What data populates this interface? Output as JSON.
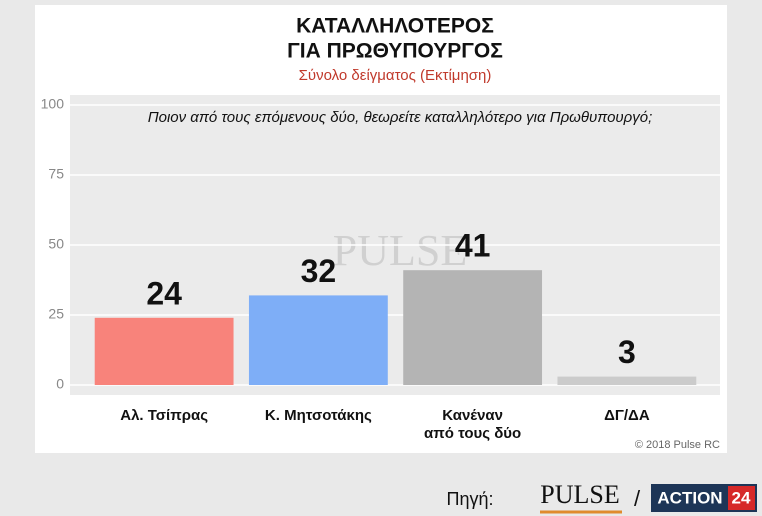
{
  "chart_data": {
    "type": "bar",
    "title": [
      "ΚΑΤΑΛΛΗΛΟΤΕΡΟΣ",
      "ΓΙΑ ΠΡΩΘΥΠΟΥΡΓΟΣ"
    ],
    "subtitle": "Σύνολο δείγματος   (Εκτίμηση)",
    "question": "Ποιον από τους επόμενους δύο, θεωρείτε καταλληλότερο για Πρωθυπουργό;",
    "categories": [
      "Αλ. Τσίπρας",
      "Κ. Μητσοτάκης",
      "Κανέναν\nαπό τους δύο",
      "ΔΓ/ΔΑ"
    ],
    "values": [
      24,
      32,
      41,
      3
    ],
    "colors": [
      "#f8837b",
      "#7eaef7",
      "#b4b4b4",
      "#cbcbcb"
    ],
    "ylim": [
      0,
      100
    ],
    "yticks": [
      0,
      25,
      50,
      75,
      100
    ],
    "grid": true,
    "copyright": "© 2018 Pulse RC",
    "watermark": "PULSE"
  },
  "footer": {
    "source_label": "Πηγή:",
    "logo_pulse": "PULSE",
    "separator": "/",
    "logo_action": "ACTION",
    "logo_action_num": "24"
  }
}
